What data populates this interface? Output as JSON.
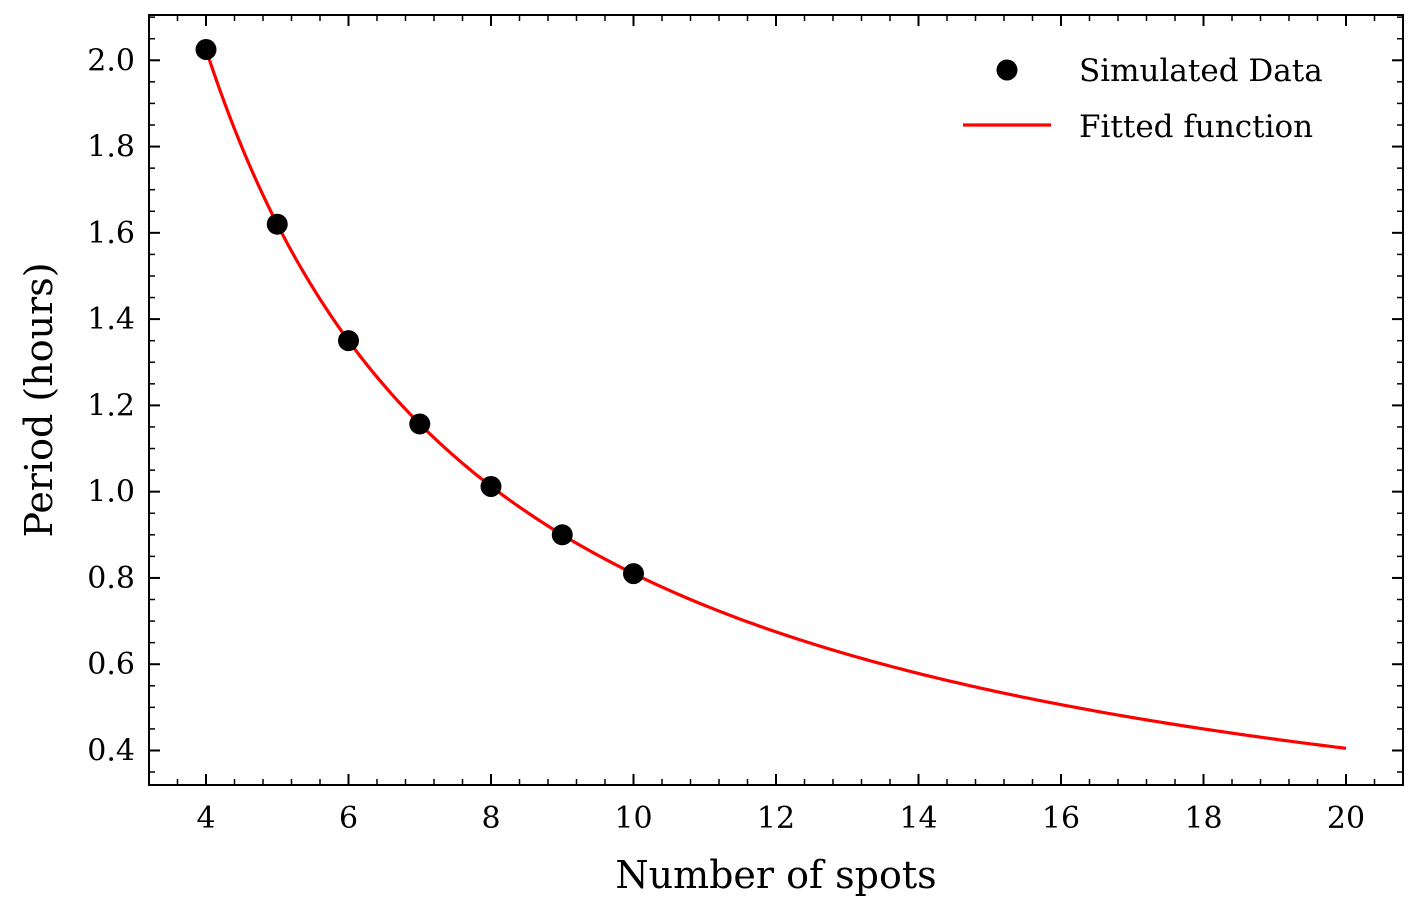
{
  "chart_data": {
    "type": "scatter",
    "xlabel": "Number of spots",
    "ylabel": "Period (hours)",
    "xlim": [
      3.2,
      20.8
    ],
    "ylim": [
      0.32,
      2.105
    ],
    "x_ticks": [
      4,
      6,
      8,
      10,
      12,
      14,
      16,
      18,
      20
    ],
    "y_ticks": [
      0.4,
      0.6,
      0.8,
      1.0,
      1.2,
      1.4,
      1.6,
      1.8,
      2.0
    ],
    "x_minor_step": 0.4,
    "y_minor_step": 0.05,
    "grid": false,
    "legend_position": "top-right",
    "series": [
      {
        "name": "Simulated Data",
        "kind": "scatter",
        "color": "#000000",
        "x": [
          4,
          5,
          6,
          7,
          8,
          9,
          10
        ],
        "y": [
          2.025,
          1.62,
          1.35,
          1.157,
          1.012,
          0.9,
          0.81
        ]
      },
      {
        "name": "Fitted function",
        "kind": "line",
        "color": "#ff0000",
        "function": "y = 8.1 / x",
        "x_range": [
          4,
          20
        ]
      }
    ]
  }
}
